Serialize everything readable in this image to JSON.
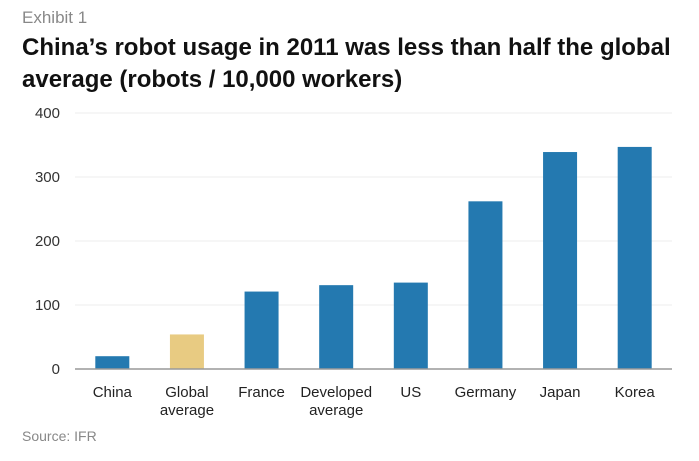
{
  "exhibit_label": "Exhibit 1",
  "source": "Source: IFR",
  "chart_data": {
    "type": "bar",
    "title": "China’s robot usage in 2011 was less than half the global average (robots / 10,000 workers)",
    "categories": [
      [
        "China"
      ],
      [
        "Global",
        "average"
      ],
      [
        "France"
      ],
      [
        "Developed",
        "average"
      ],
      [
        "US"
      ],
      [
        "Germany"
      ],
      [
        "Japan"
      ],
      [
        "Korea"
      ]
    ],
    "values": [
      20,
      54,
      121,
      131,
      135,
      262,
      339,
      347
    ],
    "colors": [
      "#2479b0",
      "#e8cb82",
      "#2479b0",
      "#2479b0",
      "#2479b0",
      "#2479b0",
      "#2479b0",
      "#2479b0"
    ],
    "yticks": [
      0,
      100,
      200,
      300,
      400
    ],
    "ylim": [
      0,
      400
    ],
    "xlabel": "",
    "ylabel": "",
    "grid": true
  }
}
